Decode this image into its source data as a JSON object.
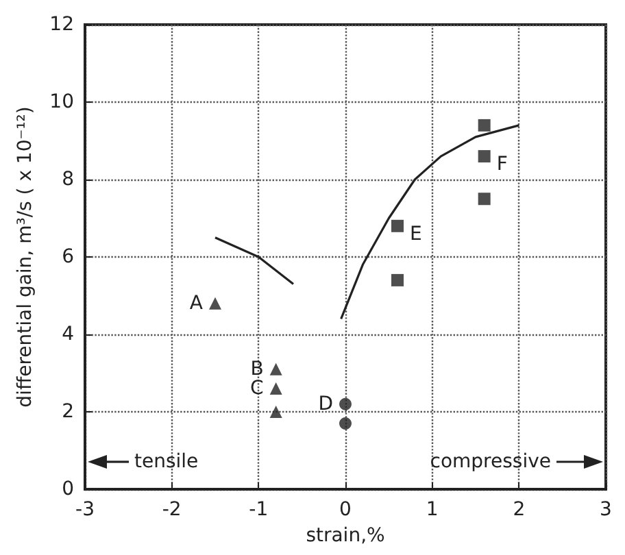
{
  "chart_data": {
    "type": "scatter",
    "xlabel": "strain,%",
    "ylabel": "differential gain, m³/s ( x 10⁻¹²)",
    "xlim": [
      -3,
      3
    ],
    "ylim": [
      0,
      12
    ],
    "xticks": [
      -3,
      -2,
      -1,
      0,
      1,
      2,
      3
    ],
    "yticks": [
      0,
      2,
      4,
      6,
      8,
      10,
      12
    ],
    "grid": true,
    "series": [
      {
        "marker": "triangle",
        "color": "#222222",
        "x": [
          -1.5,
          -0.8,
          -0.8,
          -0.8
        ],
        "values": [
          4.8,
          3.1,
          2.6,
          2.0
        ]
      },
      {
        "marker": "circle",
        "color": "#222222",
        "x": [
          0,
          0
        ],
        "values": [
          2.2,
          1.7
        ]
      },
      {
        "marker": "square",
        "color": "#222222",
        "x": [
          0.6,
          0.6,
          1.6,
          1.6,
          1.6
        ],
        "values": [
          6.8,
          5.4,
          9.4,
          8.6,
          7.5
        ]
      },
      {
        "type": "line",
        "marker": "none",
        "color": "#222222",
        "x": [
          -1.5,
          -1.0,
          -0.6
        ],
        "values": [
          6.5,
          6.0,
          5.3
        ]
      },
      {
        "type": "line",
        "marker": "none",
        "color": "#222222",
        "x": [
          -0.05,
          0.2,
          0.5,
          0.8,
          1.1,
          1.5,
          2.0
        ],
        "values": [
          4.4,
          5.8,
          7.0,
          8.0,
          8.6,
          9.1,
          9.4
        ]
      }
    ],
    "annotations": [
      {
        "text": "A",
        "x": -1.5,
        "y": 4.8
      },
      {
        "text": "B",
        "x": -0.8,
        "y": 3.1
      },
      {
        "text": "C",
        "x": -0.8,
        "y": 2.6
      },
      {
        "text": "D",
        "x": 0,
        "y": 2.2
      },
      {
        "text": "E",
        "x": 0.6,
        "y": 6.8
      },
      {
        "text": "F",
        "x": 1.6,
        "y": 8.6
      },
      "tensile",
      "compressive"
    ]
  }
}
